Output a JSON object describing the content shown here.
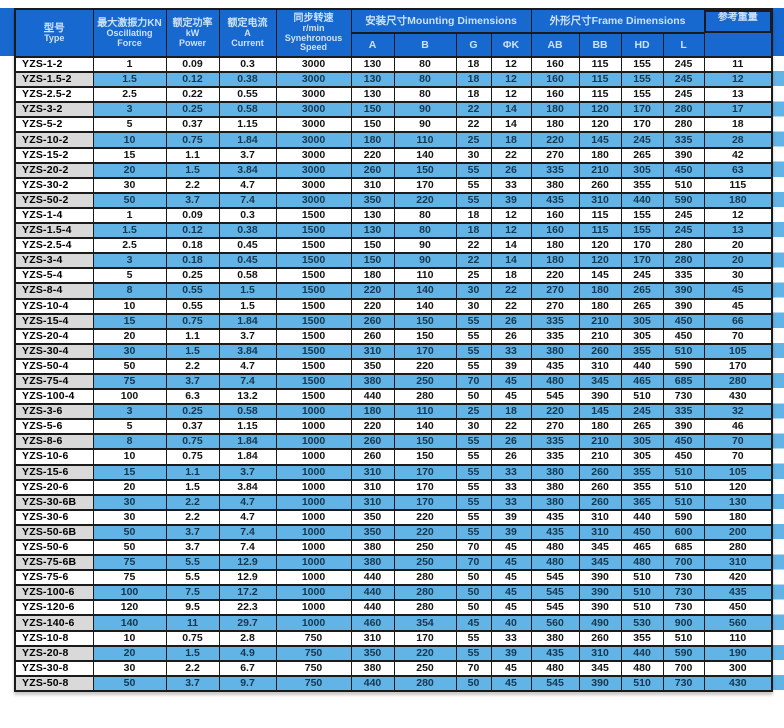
{
  "colors": {
    "header_blue": "#1768cf",
    "stripe_blue": "#62b4e6",
    "type_column_gray": "#d9d9d9",
    "border": "#1b1b1b",
    "header_text": "#cde1f6"
  },
  "table": {
    "header": {
      "type": {
        "zh": "型号",
        "en": "Type"
      },
      "force": {
        "zh": "最大激振力KN",
        "en1": "Oscillating",
        "en2": "Force"
      },
      "power": {
        "zh": "额定功率",
        "en1": "kW",
        "en2": "Power"
      },
      "current": {
        "zh": "额定电流",
        "en1": "A",
        "en2": "Current"
      },
      "speed": {
        "zh": "同步转速",
        "en1": "r/min",
        "en2": "Synehronous",
        "en3": "Speed"
      },
      "group_mounting": "安装尺寸Mounting Dimensions",
      "group_frame": "外形尺寸Frame Dimensions",
      "mounting_subcols": [
        "A",
        "B",
        "G",
        "ΦK"
      ],
      "frame_subcols": [
        "AB",
        "BB",
        "HD",
        "L"
      ],
      "weight": "参考重量"
    },
    "rows": [
      [
        "YZS-1-2",
        "1",
        "0.09",
        "0.3",
        "3000",
        "130",
        "80",
        "18",
        "12",
        "160",
        "115",
        "155",
        "245",
        "11"
      ],
      [
        "YZS-1.5-2",
        "1.5",
        "0.12",
        "0.38",
        "3000",
        "130",
        "80",
        "18",
        "12",
        "160",
        "115",
        "155",
        "245",
        "12"
      ],
      [
        "YZS-2.5-2",
        "2.5",
        "0.22",
        "0.55",
        "3000",
        "130",
        "80",
        "18",
        "12",
        "160",
        "115",
        "155",
        "245",
        "13"
      ],
      [
        "YZS-3-2",
        "3",
        "0.25",
        "0.58",
        "3000",
        "150",
        "90",
        "22",
        "14",
        "180",
        "120",
        "170",
        "280",
        "17"
      ],
      [
        "YZS-5-2",
        "5",
        "0.37",
        "1.15",
        "3000",
        "150",
        "90",
        "22",
        "14",
        "180",
        "120",
        "170",
        "280",
        "18"
      ],
      [
        "YZS-10-2",
        "10",
        "0.75",
        "1.84",
        "3000",
        "180",
        "110",
        "25",
        "18",
        "220",
        "145",
        "245",
        "335",
        "28"
      ],
      [
        "YZS-15-2",
        "15",
        "1.1",
        "3.7",
        "3000",
        "220",
        "140",
        "30",
        "22",
        "270",
        "180",
        "265",
        "390",
        "42"
      ],
      [
        "YZS-20-2",
        "20",
        "1.5",
        "3.84",
        "3000",
        "260",
        "150",
        "55",
        "26",
        "335",
        "210",
        "305",
        "450",
        "63"
      ],
      [
        "YZS-30-2",
        "30",
        "2.2",
        "4.7",
        "3000",
        "310",
        "170",
        "55",
        "33",
        "380",
        "260",
        "355",
        "510",
        "115"
      ],
      [
        "YZS-50-2",
        "50",
        "3.7",
        "7.4",
        "3000",
        "350",
        "220",
        "55",
        "39",
        "435",
        "310",
        "440",
        "590",
        "180"
      ],
      [
        "YZS-1-4",
        "1",
        "0.09",
        "0.3",
        "1500",
        "130",
        "80",
        "18",
        "12",
        "160",
        "115",
        "155",
        "245",
        "12"
      ],
      [
        "YZS-1.5-4",
        "1.5",
        "0.12",
        "0.38",
        "1500",
        "130",
        "80",
        "18",
        "12",
        "160",
        "115",
        "155",
        "245",
        "13"
      ],
      [
        "YZS-2.5-4",
        "2.5",
        "0.18",
        "0.45",
        "1500",
        "150",
        "90",
        "22",
        "14",
        "180",
        "120",
        "170",
        "280",
        "20"
      ],
      [
        "YZS-3-4",
        "3",
        "0.18",
        "0.45",
        "1500",
        "150",
        "90",
        "22",
        "14",
        "180",
        "120",
        "170",
        "280",
        "20"
      ],
      [
        "YZS-5-4",
        "5",
        "0.25",
        "0.58",
        "1500",
        "180",
        "110",
        "25",
        "18",
        "220",
        "145",
        "245",
        "335",
        "30"
      ],
      [
        "YZS-8-4",
        "8",
        "0.55",
        "1.5",
        "1500",
        "220",
        "140",
        "30",
        "22",
        "270",
        "180",
        "265",
        "390",
        "45"
      ],
      [
        "YZS-10-4",
        "10",
        "0.55",
        "1.5",
        "1500",
        "220",
        "140",
        "30",
        "22",
        "270",
        "180",
        "265",
        "390",
        "45"
      ],
      [
        "YZS-15-4",
        "15",
        "0.75",
        "1.84",
        "1500",
        "260",
        "150",
        "55",
        "26",
        "335",
        "210",
        "305",
        "450",
        "66"
      ],
      [
        "YZS-20-4",
        "20",
        "1.1",
        "3.7",
        "1500",
        "260",
        "150",
        "55",
        "26",
        "335",
        "210",
        "305",
        "450",
        "70"
      ],
      [
        "YZS-30-4",
        "30",
        "1.5",
        "3.84",
        "1500",
        "310",
        "170",
        "55",
        "33",
        "380",
        "260",
        "355",
        "510",
        "105"
      ],
      [
        "YZS-50-4",
        "50",
        "2.2",
        "4.7",
        "1500",
        "350",
        "220",
        "55",
        "39",
        "435",
        "310",
        "440",
        "590",
        "170"
      ],
      [
        "YZS-75-4",
        "75",
        "3.7",
        "7.4",
        "1500",
        "380",
        "250",
        "70",
        "45",
        "480",
        "345",
        "465",
        "685",
        "280"
      ],
      [
        "YZS-100-4",
        "100",
        "6.3",
        "13.2",
        "1500",
        "440",
        "280",
        "50",
        "45",
        "545",
        "390",
        "510",
        "730",
        "430"
      ],
      [
        "YZS-3-6",
        "3",
        "0.25",
        "0.58",
        "1000",
        "180",
        "110",
        "25",
        "18",
        "220",
        "145",
        "245",
        "335",
        "32"
      ],
      [
        "YZS-5-6",
        "5",
        "0.37",
        "1.15",
        "1000",
        "220",
        "140",
        "30",
        "22",
        "270",
        "180",
        "265",
        "390",
        "46"
      ],
      [
        "YZS-8-6",
        "8",
        "0.75",
        "1.84",
        "1000",
        "260",
        "150",
        "55",
        "26",
        "335",
        "210",
        "305",
        "450",
        "70"
      ],
      [
        "YZS-10-6",
        "10",
        "0.75",
        "1.84",
        "1000",
        "260",
        "150",
        "55",
        "26",
        "335",
        "210",
        "305",
        "450",
        "70"
      ],
      [
        "YZS-15-6",
        "15",
        "1.1",
        "3.7",
        "1000",
        "310",
        "170",
        "55",
        "33",
        "380",
        "260",
        "355",
        "510",
        "105"
      ],
      [
        "YZS-20-6",
        "20",
        "1.5",
        "3.84",
        "1000",
        "310",
        "170",
        "55",
        "33",
        "380",
        "260",
        "355",
        "510",
        "120"
      ],
      [
        "YZS-30-6B",
        "30",
        "2.2",
        "4.7",
        "1000",
        "310",
        "170",
        "55",
        "33",
        "380",
        "260",
        "365",
        "510",
        "130"
      ],
      [
        "YZS-30-6",
        "30",
        "2.2",
        "4.7",
        "1000",
        "350",
        "220",
        "55",
        "39",
        "435",
        "310",
        "440",
        "590",
        "180"
      ],
      [
        "YZS-50-6B",
        "50",
        "3.7",
        "7.4",
        "1000",
        "350",
        "220",
        "55",
        "39",
        "435",
        "310",
        "450",
        "600",
        "200"
      ],
      [
        "YZS-50-6",
        "50",
        "3.7",
        "7.4",
        "1000",
        "380",
        "250",
        "70",
        "45",
        "480",
        "345",
        "465",
        "685",
        "280"
      ],
      [
        "YZS-75-6B",
        "75",
        "5.5",
        "12.9",
        "1000",
        "380",
        "250",
        "70",
        "45",
        "480",
        "345",
        "480",
        "700",
        "310"
      ],
      [
        "YZS-75-6",
        "75",
        "5.5",
        "12.9",
        "1000",
        "440",
        "280",
        "50",
        "45",
        "545",
        "390",
        "510",
        "730",
        "420"
      ],
      [
        "YZS-100-6",
        "100",
        "7.5",
        "17.2",
        "1000",
        "440",
        "280",
        "50",
        "45",
        "545",
        "390",
        "510",
        "730",
        "435"
      ],
      [
        "YZS-120-6",
        "120",
        "9.5",
        "22.3",
        "1000",
        "440",
        "280",
        "50",
        "45",
        "545",
        "390",
        "510",
        "730",
        "450"
      ],
      [
        "YZS-140-6",
        "140",
        "11",
        "29.7",
        "1000",
        "460",
        "354",
        "45",
        "40",
        "560",
        "490",
        "530",
        "900",
        "560"
      ],
      [
        "YZS-10-8",
        "10",
        "0.75",
        "2.8",
        "750",
        "310",
        "170",
        "55",
        "33",
        "380",
        "260",
        "355",
        "510",
        "110"
      ],
      [
        "YZS-20-8",
        "20",
        "1.5",
        "4.9",
        "750",
        "350",
        "220",
        "55",
        "39",
        "435",
        "310",
        "440",
        "590",
        "190"
      ],
      [
        "YZS-30-8",
        "30",
        "2.2",
        "6.7",
        "750",
        "380",
        "250",
        "70",
        "45",
        "480",
        "345",
        "480",
        "700",
        "300"
      ],
      [
        "YZS-50-8",
        "50",
        "3.7",
        "9.7",
        "750",
        "440",
        "280",
        "50",
        "45",
        "545",
        "390",
        "510",
        "730",
        "430"
      ]
    ]
  }
}
